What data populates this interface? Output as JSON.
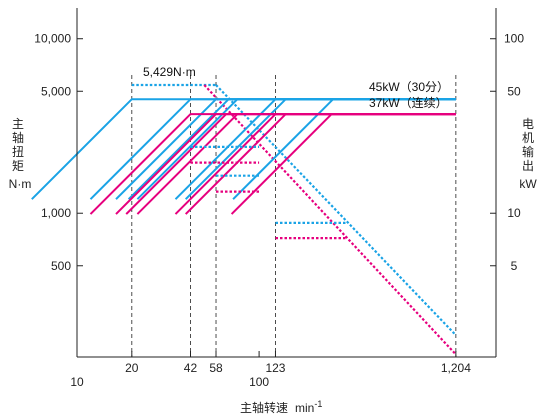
{
  "chart_data": {
    "type": "line",
    "x_scale": "log",
    "y_scale": "log",
    "xlim": [
      10,
      2000
    ],
    "ylim": [
      150,
      15000
    ],
    "y2lim": [
      1.5,
      150
    ],
    "x_ticks": [
      {
        "value": 10,
        "label": "10"
      },
      {
        "value": 20,
        "label": "20"
      },
      {
        "value": 42,
        "label": "42"
      },
      {
        "value": 58,
        "label": "58"
      },
      {
        "value": 100,
        "label": "100"
      },
      {
        "value": 123,
        "label": "123"
      },
      {
        "value": 1204,
        "label": "1,204"
      }
    ],
    "y_ticks": [
      {
        "value": 500,
        "label": "500"
      },
      {
        "value": 1000,
        "label": "1,000"
      },
      {
        "value": 5000,
        "label": "5,000"
      },
      {
        "value": 10000,
        "label": "10,000"
      }
    ],
    "y2_ticks": [
      {
        "value": 5,
        "label": "5"
      },
      {
        "value": 10,
        "label": "10"
      },
      {
        "value": 50,
        "label": "50"
      },
      {
        "value": 100,
        "label": "100"
      }
    ],
    "vlines": [
      20,
      42,
      58,
      123,
      1204
    ],
    "xlabel": "主轴转速",
    "xunit": "min",
    "xunit_sup": "-1",
    "ylabel_chars": [
      "主",
      "轴",
      "扭",
      "矩"
    ],
    "yunit": "N·m",
    "y2label_chars": [
      "电",
      "机",
      "输",
      "出"
    ],
    "y2unit": "kW",
    "colors": {
      "blue": "#1aa3e6",
      "magenta": "#e6007e",
      "axis": "#222222"
    },
    "annotations": {
      "torque_max": "5,429N·m",
      "power_45": "45kW（30分）",
      "power_37": "37kW（连续）"
    },
    "series": [
      {
        "color": "blue",
        "style": "dotted",
        "points": [
          [
            20,
            5429
          ],
          [
            58,
            5429
          ]
        ]
      },
      {
        "color": "blue",
        "style": "dotted",
        "points": [
          [
            58,
            5429
          ],
          [
            1204,
            200
          ]
        ]
      },
      {
        "color": "magenta",
        "style": "dotted",
        "points": [
          [
            50,
            5429
          ],
          [
            1204,
            155
          ]
        ]
      },
      {
        "color": "blue",
        "style": "solid",
        "power": [
          [
            20,
            45
          ],
          [
            1204,
            45
          ]
        ]
      },
      {
        "color": "blue",
        "style": "solid",
        "power": [
          [
            42,
            45
          ],
          [
            1204,
            45
          ]
        ]
      },
      {
        "color": "blue",
        "style": "solid",
        "power": [
          [
            58,
            45
          ],
          [
            1204,
            45
          ]
        ]
      },
      {
        "color": "blue",
        "style": "solid",
        "power": [
          [
            123,
            45
          ],
          [
            1204,
            45
          ]
        ]
      },
      {
        "color": "blue",
        "style": "solid",
        "power": [
          [
            68,
            45
          ],
          [
            1204,
            45
          ]
        ]
      },
      {
        "color": "blue",
        "style": "solid",
        "power": [
          [
            76,
            45
          ],
          [
            1204,
            45
          ]
        ]
      },
      {
        "color": "blue",
        "style": "solid",
        "power": [
          [
            140,
            45
          ],
          [
            1204,
            45
          ]
        ]
      },
      {
        "color": "blue",
        "style": "solid",
        "power": [
          [
            255,
            45
          ],
          [
            1204,
            45
          ]
        ]
      },
      {
        "color": "magenta",
        "style": "solid",
        "power": [
          [
            42,
            37
          ],
          [
            1204,
            37
          ]
        ]
      },
      {
        "color": "magenta",
        "style": "solid",
        "power": [
          [
            58,
            37
          ],
          [
            1204,
            37
          ]
        ]
      },
      {
        "color": "magenta",
        "style": "solid",
        "power": [
          [
            123,
            37
          ],
          [
            1204,
            37
          ]
        ]
      },
      {
        "color": "magenta",
        "style": "solid",
        "power": [
          [
            66,
            37
          ],
          [
            1204,
            37
          ]
        ]
      },
      {
        "color": "magenta",
        "style": "solid",
        "power": [
          [
            76,
            37
          ],
          [
            1204,
            37
          ]
        ]
      },
      {
        "color": "magenta",
        "style": "solid",
        "power": [
          [
            140,
            37
          ],
          [
            1204,
            37
          ]
        ]
      },
      {
        "color": "magenta",
        "style": "solid",
        "power": [
          [
            250,
            37
          ],
          [
            1204,
            37
          ]
        ]
      },
      {
        "color": "blue",
        "style": "dotted",
        "points": [
          [
            42,
            2400
          ],
          [
            100,
            2400
          ]
        ]
      },
      {
        "color": "magenta",
        "style": "dotted",
        "points": [
          [
            42,
            1950
          ],
          [
            100,
            1950
          ]
        ]
      },
      {
        "color": "blue",
        "style": "dotted",
        "points": [
          [
            58,
            1640
          ],
          [
            100,
            1640
          ]
        ]
      },
      {
        "color": "magenta",
        "style": "dotted",
        "points": [
          [
            58,
            1330
          ],
          [
            100,
            1330
          ]
        ]
      },
      {
        "color": "blue",
        "style": "dotted",
        "points": [
          [
            123,
            880
          ],
          [
            300,
            880
          ]
        ]
      },
      {
        "color": "magenta",
        "style": "dotted",
        "points": [
          [
            123,
            720
          ],
          [
            300,
            720
          ]
        ]
      }
    ]
  }
}
